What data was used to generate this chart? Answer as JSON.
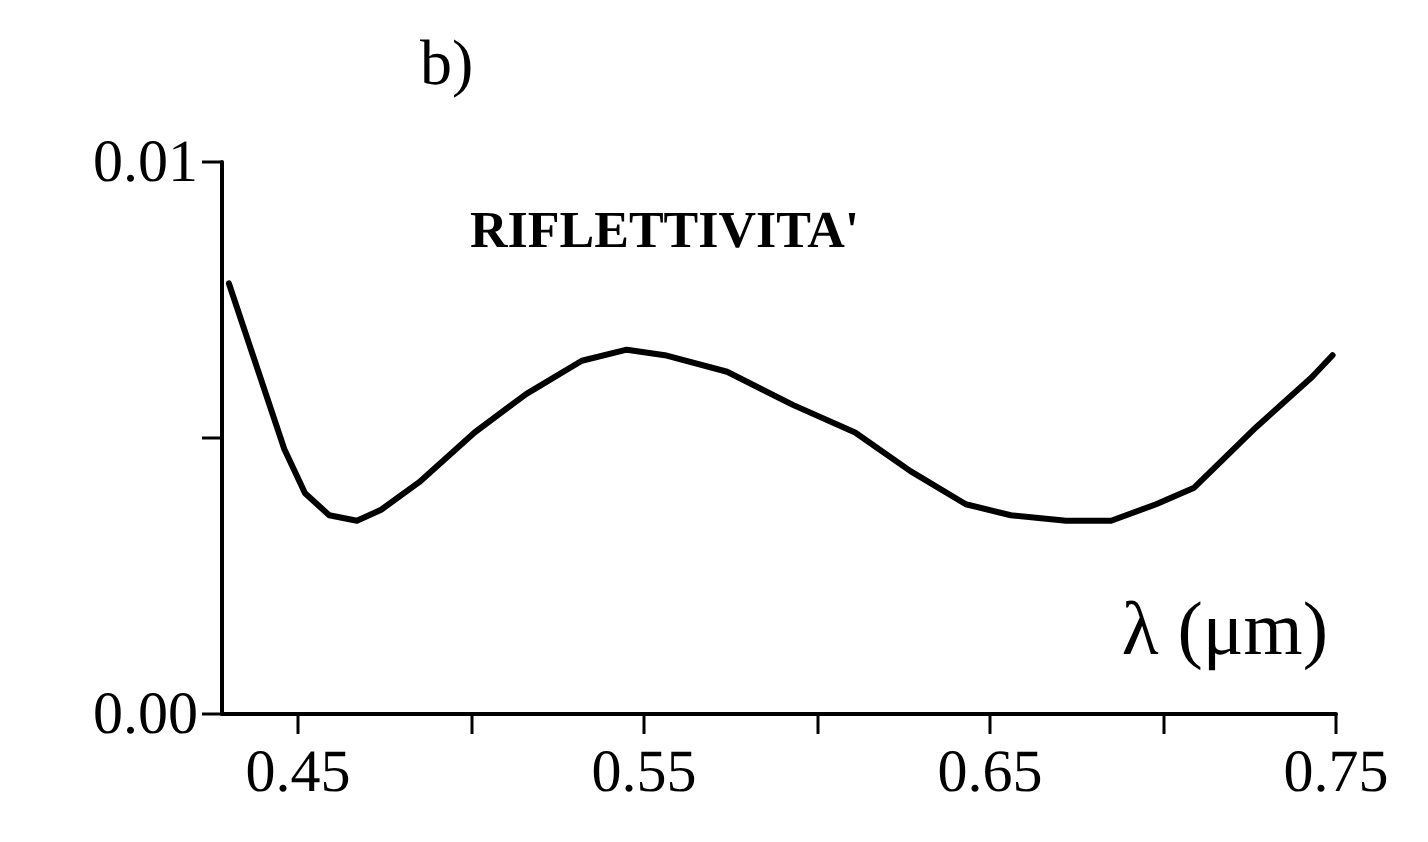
{
  "chart_data": {
    "type": "line",
    "title": "b)",
    "xlabel": "λ (μm)",
    "annotations": [
      "RIFLETTIVITA'"
    ],
    "x": [
      0.43,
      0.438,
      0.446,
      0.452,
      0.459,
      0.467,
      0.474,
      0.485,
      0.501,
      0.516,
      0.532,
      0.545,
      0.556,
      0.574,
      0.593,
      0.611,
      0.627,
      0.643,
      0.656,
      0.672,
      0.685,
      0.698,
      0.709,
      0.727,
      0.743,
      0.749
    ],
    "series": [
      {
        "color": "#000000",
        "values": [
          0.0078,
          0.0063,
          0.0048,
          0.004,
          0.0036,
          0.0035,
          0.0037,
          0.0042,
          0.0051,
          0.0058,
          0.0064,
          0.0066,
          0.0065,
          0.0062,
          0.0056,
          0.0051,
          0.0044,
          0.0038,
          0.0036,
          0.0035,
          0.0035,
          0.0038,
          0.0041,
          0.0052,
          0.0061,
          0.0065
        ]
      }
    ],
    "xlim": [
      0.428,
      0.75
    ],
    "xticks": [
      0.45,
      {
        "value": 0.5,
        "label": null
      },
      0.55,
      {
        "value": 0.6,
        "label": null
      },
      0.65,
      {
        "value": 0.7,
        "label": null
      },
      0.75
    ],
    "ylim": [
      0,
      0.01
    ],
    "yticks": [
      {
        "value": 0,
        "label": "0.00"
      },
      {
        "value": 0.005,
        "label": null
      },
      {
        "value": 0.01,
        "label": "0.01"
      }
    ],
    "marker": "none",
    "line_style": "solid"
  }
}
